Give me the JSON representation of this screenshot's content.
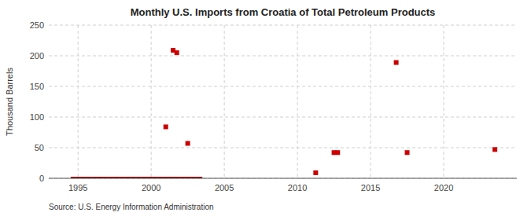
{
  "chart_data": {
    "type": "scatter",
    "title": "Monthly U.S. Imports from Croatia of Total Petroleum Products",
    "ylabel": "Thousand Barrels",
    "source": "Source: U.S. Energy Information Administration",
    "xlim": [
      1993,
      2025
    ],
    "ylim": [
      0,
      250
    ],
    "xticks": [
      1995,
      2000,
      2005,
      2010,
      2015,
      2020
    ],
    "yticks": [
      0,
      50,
      100,
      150,
      200,
      250
    ],
    "grid": true,
    "series": [
      {
        "type": "line",
        "color": "#8b1a1a",
        "x": [
          1994.5,
          2003.5
        ],
        "values": [
          0,
          0
        ]
      },
      {
        "type": "scatter",
        "color": "#cc0000",
        "marker": "square",
        "x": [
          2001.0,
          2001.5,
          2001.75,
          2002.5,
          2011.25,
          2012.5,
          2012.75,
          2016.75,
          2017.5,
          2023.5
        ],
        "values": [
          84,
          209,
          205,
          57,
          9,
          42,
          42,
          189,
          42,
          47
        ]
      }
    ]
  }
}
